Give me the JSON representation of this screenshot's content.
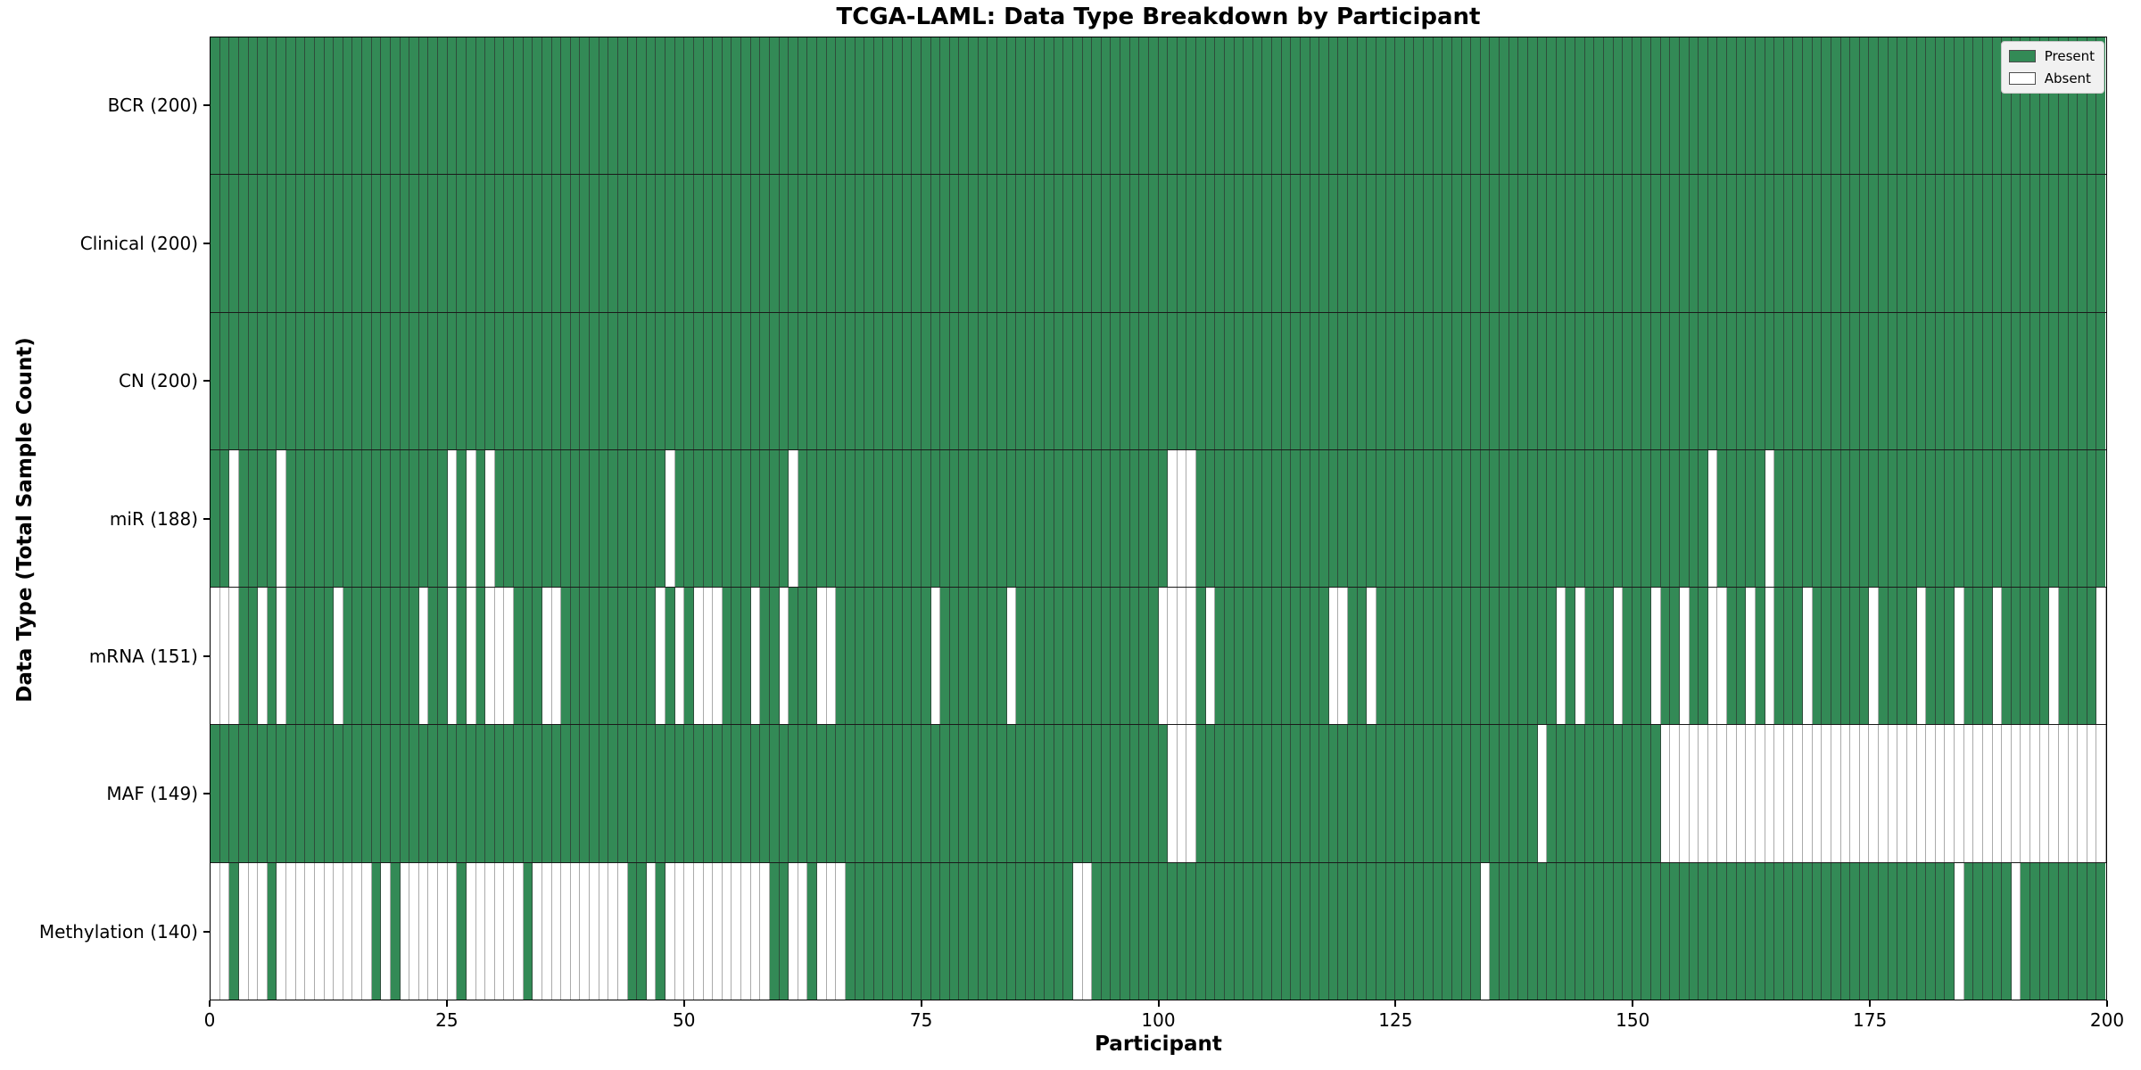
{
  "figure": {
    "title": "TCGA-LAML: Data Type Breakdown by Participant",
    "xlabel": "Participant",
    "ylabel": "Data Type (Total Sample Count)"
  },
  "legend": {
    "items": [
      {
        "label": "Present",
        "color": "#338a56"
      },
      {
        "label": "Absent",
        "color": "#ffffff"
      }
    ]
  },
  "chart_data": {
    "type": "heatmap",
    "title": "TCGA-LAML: Data Type Breakdown by Participant",
    "xlabel": "Participant",
    "ylabel": "Data Type (Total Sample Count)",
    "n_participants": 200,
    "x_ticks": [
      0,
      25,
      50,
      75,
      100,
      125,
      150,
      175,
      200
    ],
    "xlim": [
      0,
      200
    ],
    "grid": false,
    "legend_position": "upper right",
    "present_color": "#338a56",
    "absent_color": "#ffffff",
    "rows": [
      {
        "label": "BCR (200)",
        "data_type": "BCR",
        "present_count": 200,
        "absent_participants": []
      },
      {
        "label": "Clinical (200)",
        "data_type": "Clinical",
        "present_count": 200,
        "absent_participants": []
      },
      {
        "label": "CN (200)",
        "data_type": "CN",
        "present_count": 200,
        "absent_participants": []
      },
      {
        "label": "miR (188)",
        "data_type": "miR",
        "present_count": 188,
        "absent_participants": [
          2,
          7,
          25,
          27,
          29,
          48,
          61,
          101,
          102,
          103,
          158,
          164
        ]
      },
      {
        "label": "mRNA (151)",
        "data_type": "mRNA",
        "present_count": 151,
        "absent_participants": [
          0,
          1,
          2,
          5,
          7,
          13,
          22,
          25,
          27,
          29,
          30,
          31,
          35,
          36,
          47,
          49,
          51,
          52,
          53,
          57,
          60,
          64,
          65,
          76,
          84,
          100,
          101,
          102,
          103,
          105,
          118,
          119,
          122,
          142,
          144,
          148,
          152,
          155,
          158,
          159,
          162,
          164,
          168,
          175,
          180,
          184,
          188,
          194,
          199
        ]
      },
      {
        "label": "MAF (149)",
        "data_type": "MAF",
        "present_count": 149,
        "absent_participants": [
          101,
          102,
          103,
          140,
          153,
          154,
          155,
          156,
          157,
          158,
          159,
          160,
          161,
          162,
          163,
          164,
          165,
          166,
          167,
          168,
          169,
          170,
          171,
          172,
          173,
          174,
          175,
          176,
          177,
          178,
          179,
          180,
          181,
          182,
          183,
          184,
          185,
          186,
          187,
          188,
          189,
          190,
          191,
          192,
          193,
          194,
          195,
          196,
          197,
          198,
          199
        ]
      },
      {
        "label": "Methylation (140)",
        "data_type": "Methylation",
        "present_count": 140,
        "absent_participants": [
          0,
          1,
          3,
          4,
          5,
          7,
          8,
          9,
          10,
          11,
          12,
          13,
          14,
          15,
          16,
          18,
          20,
          21,
          22,
          23,
          24,
          25,
          27,
          28,
          29,
          30,
          31,
          32,
          34,
          35,
          36,
          37,
          38,
          39,
          40,
          41,
          42,
          43,
          46,
          48,
          49,
          50,
          51,
          52,
          53,
          54,
          55,
          56,
          57,
          58,
          61,
          62,
          64,
          65,
          66,
          91,
          92,
          134,
          184,
          190
        ]
      }
    ]
  }
}
